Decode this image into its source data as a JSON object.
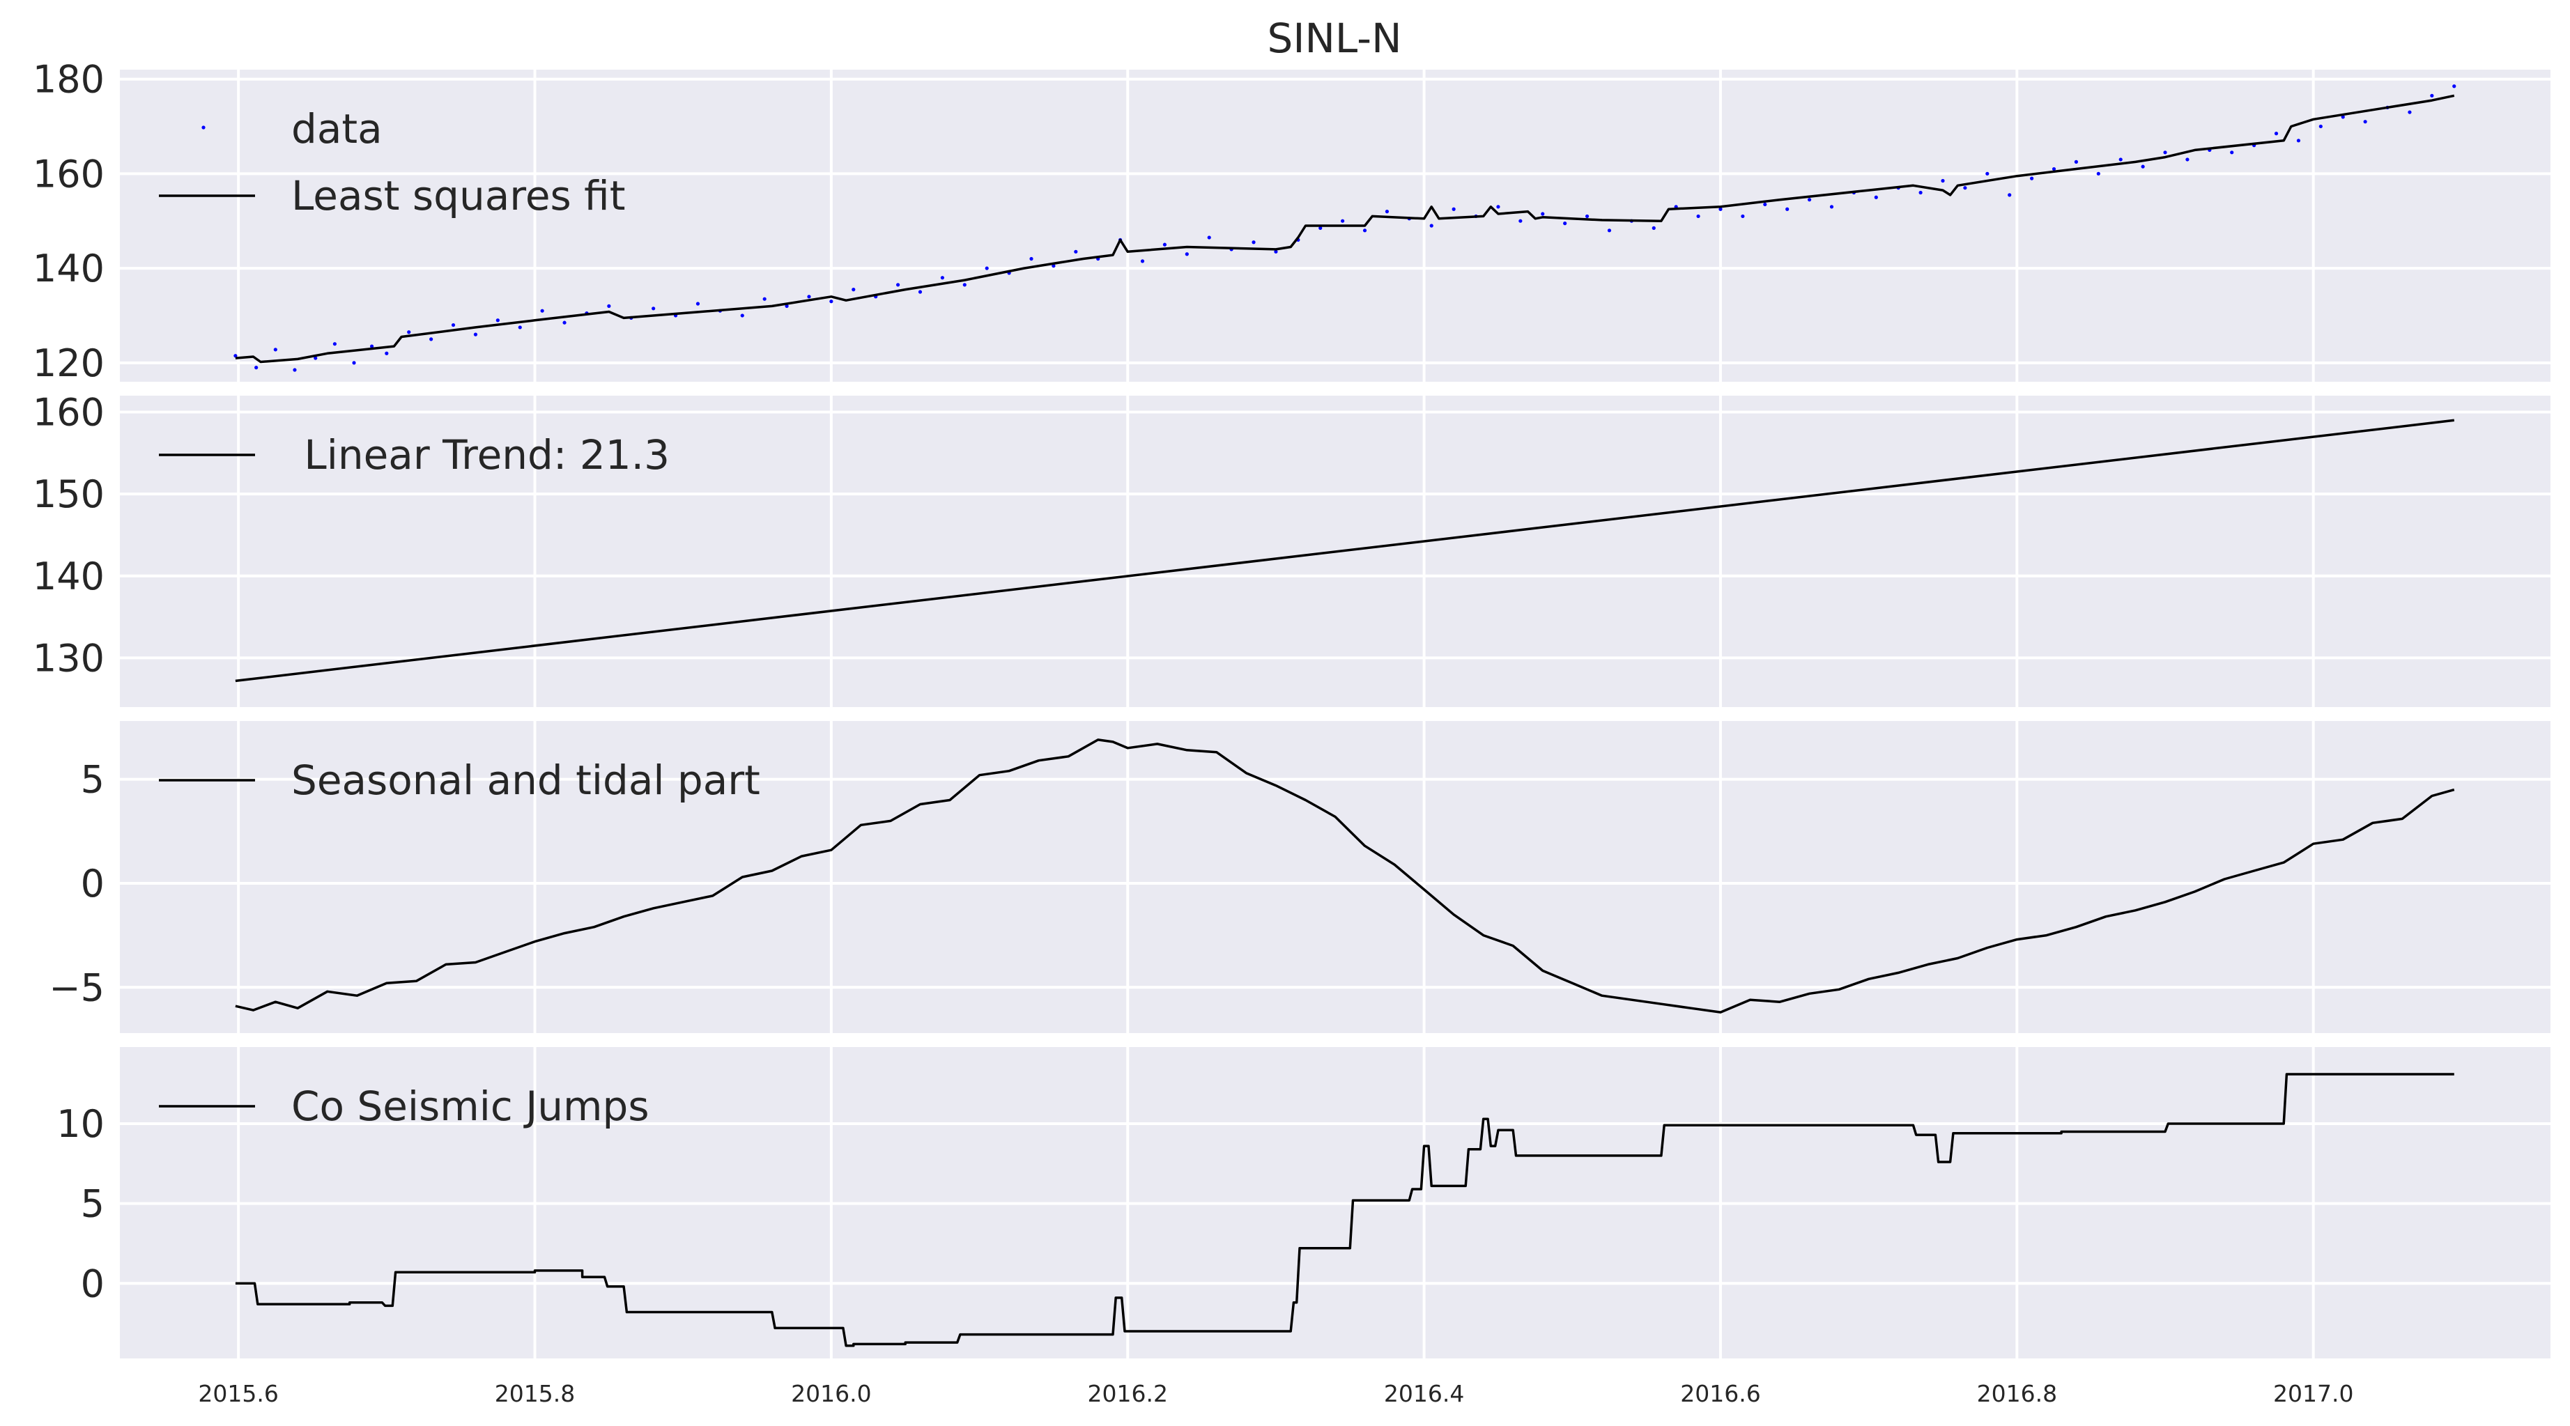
{
  "figure": {
    "title": "SINL-N"
  },
  "x_tick_labels": [
    "2015.6",
    "2015.8",
    "2016.0",
    "2016.2",
    "2016.4",
    "2016.6",
    "2016.8",
    "2017.0"
  ],
  "chart_data": [
    {
      "type": "scatter",
      "title": "SINL-N",
      "x_range": [
        2015.52,
        2017.16
      ],
      "ylim": [
        116,
        182
      ],
      "y_ticks": [
        120,
        140,
        160,
        180
      ],
      "grid": true,
      "legend_position": "top-left",
      "series": [
        {
          "name": "data",
          "kind": "points",
          "color": "#0000ff",
          "x": [
            2015.598,
            2015.612,
            2015.625,
            2015.638,
            2015.652,
            2015.665,
            2015.678,
            2015.69,
            2015.7,
            2015.715,
            2015.73,
            2015.745,
            2015.76,
            2015.775,
            2015.79,
            2015.805,
            2015.82,
            2015.835,
            2015.85,
            2015.865,
            2015.88,
            2015.895,
            2015.91,
            2015.925,
            2015.94,
            2015.955,
            2015.97,
            2015.985,
            2016.0,
            2016.015,
            2016.03,
            2016.045,
            2016.06,
            2016.075,
            2016.09,
            2016.105,
            2016.12,
            2016.135,
            2016.15,
            2016.165,
            2016.18,
            2016.195,
            2016.21,
            2016.225,
            2016.24,
            2016.255,
            2016.27,
            2016.285,
            2016.3,
            2016.315,
            2016.33,
            2016.345,
            2016.36,
            2016.375,
            2016.39,
            2016.405,
            2016.42,
            2016.435,
            2016.45,
            2016.465,
            2016.48,
            2016.495,
            2016.51,
            2016.525,
            2016.54,
            2016.555,
            2016.57,
            2016.585,
            2016.6,
            2016.615,
            2016.63,
            2016.645,
            2016.66,
            2016.675,
            2016.69,
            2016.705,
            2016.72,
            2016.735,
            2016.75,
            2016.765,
            2016.78,
            2016.795,
            2016.81,
            2016.825,
            2016.84,
            2016.855,
            2016.87,
            2016.885,
            2016.9,
            2016.915,
            2016.93,
            2016.945,
            2016.96,
            2016.975,
            2016.99,
            2017.005,
            2017.02,
            2017.035,
            2017.05,
            2017.065,
            2017.08,
            2017.095
          ],
          "y": [
            121.5,
            119.0,
            122.8,
            118.5,
            121.0,
            124.0,
            120.0,
            123.5,
            122.0,
            126.5,
            125.0,
            128.0,
            126.0,
            129.0,
            127.5,
            131.0,
            128.5,
            130.5,
            132.0,
            129.5,
            131.5,
            130.0,
            132.5,
            131.0,
            130.0,
            133.5,
            132.0,
            134.0,
            133.0,
            135.5,
            134.0,
            136.5,
            135.0,
            138.0,
            136.5,
            140.0,
            139.0,
            142.0,
            140.5,
            143.5,
            142.0,
            146.0,
            141.5,
            145.0,
            143.0,
            146.5,
            144.0,
            145.5,
            143.5,
            146.0,
            148.5,
            150.0,
            148.0,
            152.0,
            150.5,
            149.0,
            152.5,
            151.0,
            153.0,
            150.0,
            151.5,
            149.5,
            151.0,
            148.0,
            150.0,
            148.5,
            153.0,
            151.0,
            152.5,
            151.0,
            153.5,
            152.5,
            154.5,
            153.0,
            156.0,
            155.0,
            157.0,
            156.0,
            158.5,
            157.0,
            160.0,
            155.5,
            159.0,
            161.0,
            162.5,
            160.0,
            163.0,
            161.5,
            164.5,
            163.0,
            165.0,
            164.5,
            166.0,
            168.5,
            167.0,
            170.0,
            172.0,
            171.0,
            174.0,
            173.0,
            176.5,
            178.5
          ]
        },
        {
          "name": "Least squares fit",
          "kind": "line",
          "color": "#000000",
          "x": [
            2015.598,
            2015.61,
            2015.615,
            2015.64,
            2015.66,
            2015.705,
            2015.71,
            2015.76,
            2015.8,
            2015.85,
            2015.86,
            2015.96,
            2016.0,
            2016.01,
            2016.05,
            2016.09,
            2016.13,
            2016.17,
            2016.19,
            2016.195,
            2016.2,
            2016.24,
            2016.3,
            2016.31,
            2016.315,
            2016.32,
            2016.36,
            2016.365,
            2016.4,
            2016.405,
            2016.41,
            2016.44,
            2016.445,
            2016.45,
            2016.47,
            2016.475,
            2016.48,
            2016.52,
            2016.56,
            2016.565,
            2016.6,
            2016.64,
            2016.7,
            2016.73,
            2016.75,
            2016.755,
            2016.76,
            2016.8,
            2016.84,
            2016.88,
            2016.9,
            2016.92,
            2016.98,
            2016.985,
            2017.0,
            2017.05,
            2017.08,
            2017.095
          ],
          "y": [
            121.0,
            121.3,
            120.2,
            120.8,
            122.0,
            123.5,
            125.5,
            127.5,
            129.0,
            130.8,
            129.5,
            132.0,
            134.0,
            133.2,
            135.5,
            137.5,
            140.0,
            142.0,
            142.8,
            146.0,
            143.5,
            144.5,
            144.0,
            144.5,
            146.5,
            149.0,
            149.0,
            151.0,
            150.5,
            153.0,
            150.5,
            151.0,
            153.0,
            151.5,
            152.0,
            150.5,
            150.8,
            150.2,
            150.0,
            152.5,
            153.0,
            154.5,
            156.5,
            157.5,
            156.5,
            155.5,
            157.5,
            159.5,
            161.0,
            162.5,
            163.5,
            165.0,
            167.0,
            170.0,
            171.5,
            174.0,
            175.5,
            176.5
          ]
        }
      ]
    },
    {
      "type": "line",
      "x_range": [
        2015.52,
        2017.16
      ],
      "ylim": [
        124,
        162
      ],
      "y_ticks": [
        130,
        140,
        150,
        160
      ],
      "grid": true,
      "legend_position": "top-left",
      "series": [
        {
          "name": " Linear Trend: 21.3",
          "color": "#000000",
          "x": [
            2015.598,
            2017.095
          ],
          "y": [
            127.2,
            159.0
          ]
        }
      ]
    },
    {
      "type": "line",
      "x_range": [
        2015.52,
        2017.16
      ],
      "ylim": [
        -7.2,
        7.8
      ],
      "y_ticks": [
        5,
        0,
        -5
      ],
      "y_tick_labels": [
        "5",
        "0",
        "−5"
      ],
      "grid": true,
      "legend_position": "top-left",
      "series": [
        {
          "name": "Seasonal and tidal part",
          "color": "#000000",
          "x": [
            2015.598,
            2015.61,
            2015.625,
            2015.64,
            2015.66,
            2015.68,
            2015.7,
            2015.72,
            2015.74,
            2015.76,
            2015.78,
            2015.8,
            2015.82,
            2015.84,
            2015.86,
            2015.88,
            2015.9,
            2015.92,
            2015.94,
            2015.96,
            2015.98,
            2016.0,
            2016.02,
            2016.04,
            2016.06,
            2016.08,
            2016.1,
            2016.12,
            2016.14,
            2016.16,
            2016.18,
            2016.19,
            2016.2,
            2016.22,
            2016.24,
            2016.26,
            2016.28,
            2016.3,
            2016.32,
            2016.34,
            2016.36,
            2016.38,
            2016.4,
            2016.42,
            2016.44,
            2016.46,
            2016.48,
            2016.5,
            2016.52,
            2016.54,
            2016.56,
            2016.58,
            2016.6,
            2016.62,
            2016.64,
            2016.66,
            2016.68,
            2016.7,
            2016.72,
            2016.74,
            2016.76,
            2016.78,
            2016.8,
            2016.82,
            2016.84,
            2016.86,
            2016.88,
            2016.9,
            2016.92,
            2016.94,
            2016.96,
            2016.98,
            2017.0,
            2017.02,
            2017.04,
            2017.06,
            2017.08,
            2017.095
          ],
          "y": [
            -5.9,
            -6.1,
            -5.7,
            -6.0,
            -5.2,
            -5.4,
            -4.8,
            -4.7,
            -3.9,
            -3.8,
            -3.3,
            -2.8,
            -2.4,
            -2.1,
            -1.6,
            -1.2,
            -0.9,
            -0.6,
            0.3,
            0.6,
            1.3,
            1.6,
            2.8,
            3.0,
            3.8,
            4.0,
            5.2,
            5.4,
            5.9,
            6.1,
            6.9,
            6.8,
            6.5,
            6.7,
            6.4,
            6.3,
            5.3,
            4.7,
            4.0,
            3.2,
            1.8,
            0.9,
            -0.3,
            -1.5,
            -2.5,
            -3.0,
            -4.2,
            -4.8,
            -5.4,
            -5.6,
            -5.8,
            -6.0,
            -6.2,
            -5.6,
            -5.7,
            -5.3,
            -5.1,
            -4.6,
            -4.3,
            -3.9,
            -3.6,
            -3.1,
            -2.7,
            -2.5,
            -2.1,
            -1.6,
            -1.3,
            -0.9,
            -0.4,
            0.2,
            0.6,
            1.0,
            1.9,
            2.1,
            2.9,
            3.1,
            4.2,
            4.5
          ]
        }
      ]
    },
    {
      "type": "line",
      "x_range": [
        2015.52,
        2017.16
      ],
      "ylim": [
        -4.7,
        14.8
      ],
      "y_ticks": [
        10,
        5,
        0
      ],
      "grid": true,
      "legend_position": "top-left",
      "series": [
        {
          "name": "Co Seismic Jumps",
          "color": "#000000",
          "x": [
            2015.598,
            2015.611,
            2015.613,
            2015.675,
            2015.675,
            2015.697,
            2015.699,
            2015.704,
            2015.706,
            2015.8,
            2015.8,
            2015.832,
            2015.832,
            2015.847,
            2015.849,
            2015.86,
            2015.862,
            2015.96,
            2015.962,
            2016.008,
            2016.01,
            2016.015,
            2016.015,
            2016.05,
            2016.05,
            2016.085,
            2016.087,
            2016.19,
            2016.192,
            2016.196,
            2016.198,
            2016.31,
            2016.312,
            2016.314,
            2016.316,
            2016.35,
            2016.352,
            2016.39,
            2016.392,
            2016.398,
            2016.4,
            2016.403,
            2016.405,
            2016.428,
            2016.43,
            2016.438,
            2016.44,
            2016.443,
            2016.445,
            2016.448,
            2016.45,
            2016.46,
            2016.462,
            2016.47,
            2016.472,
            2016.475,
            2016.477,
            2016.56,
            2016.562,
            2016.73,
            2016.732,
            2016.745,
            2016.747,
            2016.755,
            2016.757,
            2016.83,
            2016.83,
            2016.9,
            2016.902,
            2016.98,
            2016.982,
            2017.095
          ],
          "y": [
            0.0,
            0.0,
            -1.3,
            -1.3,
            -1.2,
            -1.2,
            -1.4,
            -1.4,
            0.7,
            0.7,
            0.8,
            0.8,
            0.4,
            0.4,
            -0.2,
            -0.2,
            -1.8,
            -1.8,
            -2.8,
            -2.8,
            -3.9,
            -3.9,
            -3.8,
            -3.8,
            -3.7,
            -3.7,
            -3.2,
            -3.2,
            -0.9,
            -0.9,
            -3.0,
            -3.0,
            -1.2,
            -1.2,
            2.2,
            2.2,
            5.2,
            5.2,
            5.9,
            5.9,
            8.6,
            8.6,
            6.1,
            6.1,
            8.4,
            8.4,
            10.3,
            10.3,
            8.6,
            8.6,
            9.6,
            9.6,
            8.0,
            8.0,
            8.0,
            8.0,
            8.0,
            8.0,
            9.9,
            9.9,
            9.3,
            9.3,
            7.6,
            7.6,
            9.4,
            9.4,
            9.5,
            9.5,
            10.0,
            10.0,
            13.1,
            13.1
          ]
        }
      ]
    }
  ]
}
